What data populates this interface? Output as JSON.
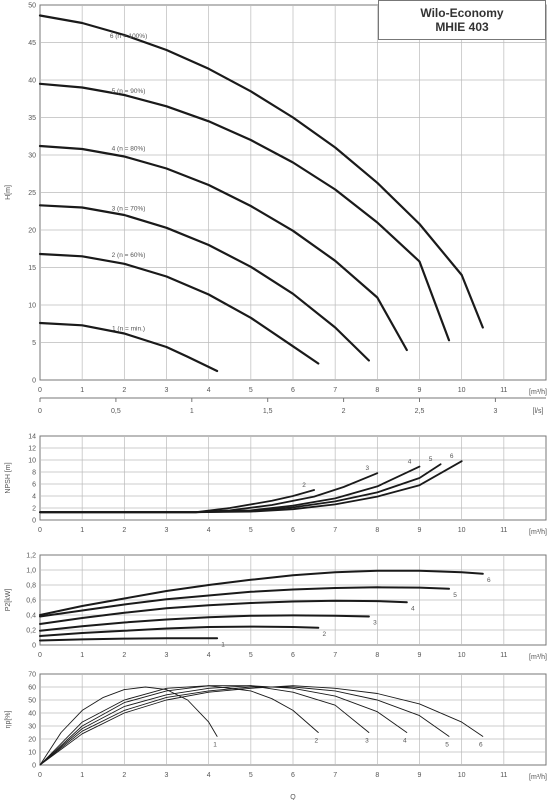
{
  "header": {
    "title_line1": "Wilo-Economy",
    "title_line2": "MHIE 403"
  },
  "chart_data": [
    {
      "id": "head",
      "type": "line",
      "ylabel": "H[m]",
      "xlabel_units": "[m³/h]",
      "secondary_x_units": "[l/s]",
      "xlim": [
        0,
        12
      ],
      "ylim": [
        0,
        50
      ],
      "grid": true,
      "x_ticks": [
        "0",
        "1",
        "2",
        "3",
        "4",
        "5",
        "6",
        "7",
        "8",
        "9",
        "10",
        "11"
      ],
      "y_ticks": [
        "0",
        "5",
        "10",
        "15",
        "20",
        "25",
        "30",
        "35",
        "40",
        "45",
        "50"
      ],
      "secondary_x_ticks": [
        "0",
        "0,5",
        "1",
        "1,5",
        "2",
        "2,5",
        "3"
      ],
      "series": [
        {
          "name": "1 (n = min.)",
          "label_pos": [
            2.1,
            7.0
          ],
          "x": [
            0,
            1,
            2,
            3,
            3.5,
            4.2
          ],
          "y": [
            7.6,
            7.3,
            6.2,
            4.4,
            3.1,
            1.2
          ]
        },
        {
          "name": "2 (n = 60%)",
          "label_pos": [
            2.1,
            16.8
          ],
          "x": [
            0,
            1,
            2,
            3,
            4,
            5,
            6,
            6.6
          ],
          "y": [
            16.8,
            16.5,
            15.5,
            13.8,
            11.4,
            8.3,
            4.5,
            2.2
          ]
        },
        {
          "name": "3 (n = 70%)",
          "label_pos": [
            2.1,
            23.0
          ],
          "x": [
            0,
            1,
            2,
            3,
            4,
            5,
            6,
            7,
            7.8
          ],
          "y": [
            23.3,
            23.0,
            22.0,
            20.3,
            18.0,
            15.1,
            11.5,
            7.0,
            2.6
          ]
        },
        {
          "name": "4 (n = 80%)",
          "label_pos": [
            2.1,
            31.0
          ],
          "x": [
            0,
            1,
            2,
            3,
            4,
            5,
            6,
            7,
            8,
            8.7
          ],
          "y": [
            31.2,
            30.8,
            29.8,
            28.2,
            26.0,
            23.2,
            19.9,
            15.9,
            11.0,
            4.0
          ]
        },
        {
          "name": "5 (n = 90%)",
          "label_pos": [
            2.1,
            38.7
          ],
          "x": [
            0,
            1,
            2,
            3,
            4,
            5,
            6,
            7,
            8,
            9,
            9.7
          ],
          "y": [
            39.5,
            39.0,
            38.0,
            36.5,
            34.5,
            32.0,
            29.0,
            25.4,
            21.0,
            15.8,
            5.3
          ]
        },
        {
          "name": "6 (n = 100%)",
          "label_pos": [
            2.1,
            46.0
          ],
          "x": [
            0,
            1,
            2,
            3,
            4,
            5,
            6,
            7,
            8,
            9,
            10,
            10.5
          ],
          "y": [
            48.6,
            47.6,
            46.0,
            44.0,
            41.5,
            38.5,
            35.0,
            31.0,
            26.3,
            20.8,
            14.0,
            7.0
          ]
        }
      ]
    },
    {
      "id": "npsh",
      "type": "line",
      "ylabel": "NPSH [m]",
      "xlabel_units": "[m³/h]",
      "xlim": [
        0,
        12
      ],
      "ylim": [
        0,
        14
      ],
      "grid": true,
      "x_ticks": [
        "0",
        "1",
        "2",
        "3",
        "4",
        "5",
        "6",
        "7",
        "8",
        "9",
        "10",
        "11"
      ],
      "y_ticks": [
        "0",
        "2",
        "4",
        "6",
        "8",
        "10",
        "12",
        "14"
      ],
      "series": [
        {
          "name": "2",
          "x": [
            0,
            3.7,
            4.5,
            5.5,
            6.0,
            6.5
          ],
          "y": [
            1.3,
            1.3,
            2.0,
            3.2,
            4.0,
            5.0
          ]
        },
        {
          "name": "3",
          "x": [
            0,
            3.7,
            4.5,
            5.5,
            6.5,
            7.2,
            8.0
          ],
          "y": [
            1.3,
            1.3,
            1.6,
            2.5,
            3.9,
            5.5,
            7.8
          ]
        },
        {
          "name": "4",
          "x": [
            0,
            3.7,
            5.0,
            6.0,
            7.0,
            8.0,
            9.0
          ],
          "y": [
            1.3,
            1.3,
            1.6,
            2.4,
            3.6,
            5.6,
            8.9
          ]
        },
        {
          "name": "5",
          "x": [
            0,
            3.7,
            5.0,
            6.0,
            7.0,
            8.0,
            9.0,
            9.5
          ],
          "y": [
            1.3,
            1.3,
            1.5,
            2.1,
            3.1,
            4.6,
            7.0,
            9.3
          ]
        },
        {
          "name": "6",
          "x": [
            0,
            3.7,
            5.0,
            6.0,
            7.0,
            8.0,
            9.0,
            10.0
          ],
          "y": [
            1.3,
            1.3,
            1.4,
            1.8,
            2.6,
            3.9,
            5.8,
            9.8
          ]
        }
      ]
    },
    {
      "id": "power",
      "type": "line",
      "ylabel": "P2[kW]",
      "xlabel_units": "[m³/h]",
      "xlim": [
        0,
        12
      ],
      "ylim": [
        0,
        1.2
      ],
      "grid": true,
      "x_ticks": [
        "0",
        "1",
        "2",
        "3",
        "4",
        "5",
        "6",
        "7",
        "8",
        "9",
        "10",
        "11"
      ],
      "y_ticks": [
        "0",
        "0,2",
        "0,4",
        "0,6",
        "0,8",
        "1,0",
        "1,2"
      ],
      "series": [
        {
          "name": "1",
          "x": [
            0,
            1,
            2,
            3,
            4,
            4.2
          ],
          "y": [
            0.06,
            0.075,
            0.085,
            0.09,
            0.09,
            0.09
          ]
        },
        {
          "name": "2",
          "x": [
            0,
            1,
            2,
            3,
            4,
            5,
            6,
            6.6
          ],
          "y": [
            0.12,
            0.16,
            0.19,
            0.22,
            0.24,
            0.245,
            0.24,
            0.23
          ]
        },
        {
          "name": "3",
          "x": [
            0,
            1,
            2,
            3,
            4,
            5,
            6,
            7,
            7.8
          ],
          "y": [
            0.19,
            0.25,
            0.3,
            0.34,
            0.37,
            0.39,
            0.395,
            0.39,
            0.38
          ]
        },
        {
          "name": "4",
          "x": [
            0,
            1,
            2,
            3,
            4,
            5,
            6,
            7,
            8,
            8.7
          ],
          "y": [
            0.28,
            0.36,
            0.43,
            0.49,
            0.53,
            0.56,
            0.58,
            0.59,
            0.585,
            0.57
          ]
        },
        {
          "name": "5",
          "x": [
            0,
            1,
            2,
            3,
            4,
            5,
            6,
            7,
            8,
            9,
            9.7
          ],
          "y": [
            0.38,
            0.46,
            0.54,
            0.61,
            0.66,
            0.71,
            0.74,
            0.76,
            0.77,
            0.765,
            0.75
          ]
        },
        {
          "name": "6",
          "x": [
            0,
            1,
            2,
            3,
            4,
            5,
            6,
            7,
            8,
            9,
            10,
            10.5
          ],
          "y": [
            0.4,
            0.52,
            0.62,
            0.72,
            0.8,
            0.87,
            0.93,
            0.97,
            0.99,
            0.99,
            0.97,
            0.95
          ]
        }
      ]
    },
    {
      "id": "efficiency",
      "type": "line",
      "ylabel": "ηp[%]",
      "xlabel": "Q",
      "xlabel_units": "[m³/h]",
      "xlim": [
        0,
        12
      ],
      "ylim": [
        0,
        70
      ],
      "grid": true,
      "x_ticks": [
        "0",
        "1",
        "2",
        "3",
        "4",
        "5",
        "6",
        "7",
        "8",
        "9",
        "10",
        "11"
      ],
      "y_ticks": [
        "0",
        "10",
        "20",
        "30",
        "40",
        "50",
        "60",
        "70"
      ],
      "series": [
        {
          "name": "1",
          "x": [
            0,
            0.5,
            1,
            1.5,
            2,
            2.5,
            3,
            3.5,
            4,
            4.2
          ],
          "y": [
            0,
            25,
            42,
            52,
            58,
            60,
            58,
            50,
            33,
            22
          ]
        },
        {
          "name": "2",
          "x": [
            0,
            1,
            2,
            3,
            4,
            5,
            5.5,
            6,
            6.6
          ],
          "y": [
            0,
            33,
            50,
            59,
            61,
            57,
            51,
            42,
            25
          ]
        },
        {
          "name": "3",
          "x": [
            0,
            1,
            2,
            3,
            4,
            5,
            6,
            7,
            7.8
          ],
          "y": [
            0,
            30,
            48,
            57,
            61,
            61,
            56,
            46,
            25
          ]
        },
        {
          "name": "4",
          "x": [
            0,
            1,
            2,
            3,
            4,
            5,
            6,
            7,
            8,
            8.7
          ],
          "y": [
            0,
            28,
            45,
            54,
            59,
            61,
            59,
            53,
            41,
            25
          ]
        },
        {
          "name": "5",
          "x": [
            0,
            1,
            2,
            3,
            4,
            5,
            6,
            7,
            8,
            9,
            9.7
          ],
          "y": [
            0,
            26,
            42,
            52,
            57,
            60,
            60,
            57,
            50,
            38,
            22
          ]
        },
        {
          "name": "6",
          "x": [
            0,
            1,
            2,
            3,
            4,
            5,
            6,
            7,
            8,
            9,
            10,
            10.5
          ],
          "y": [
            0,
            24,
            40,
            50,
            56,
            59,
            61,
            59,
            55,
            47,
            33,
            22
          ]
        }
      ]
    }
  ]
}
